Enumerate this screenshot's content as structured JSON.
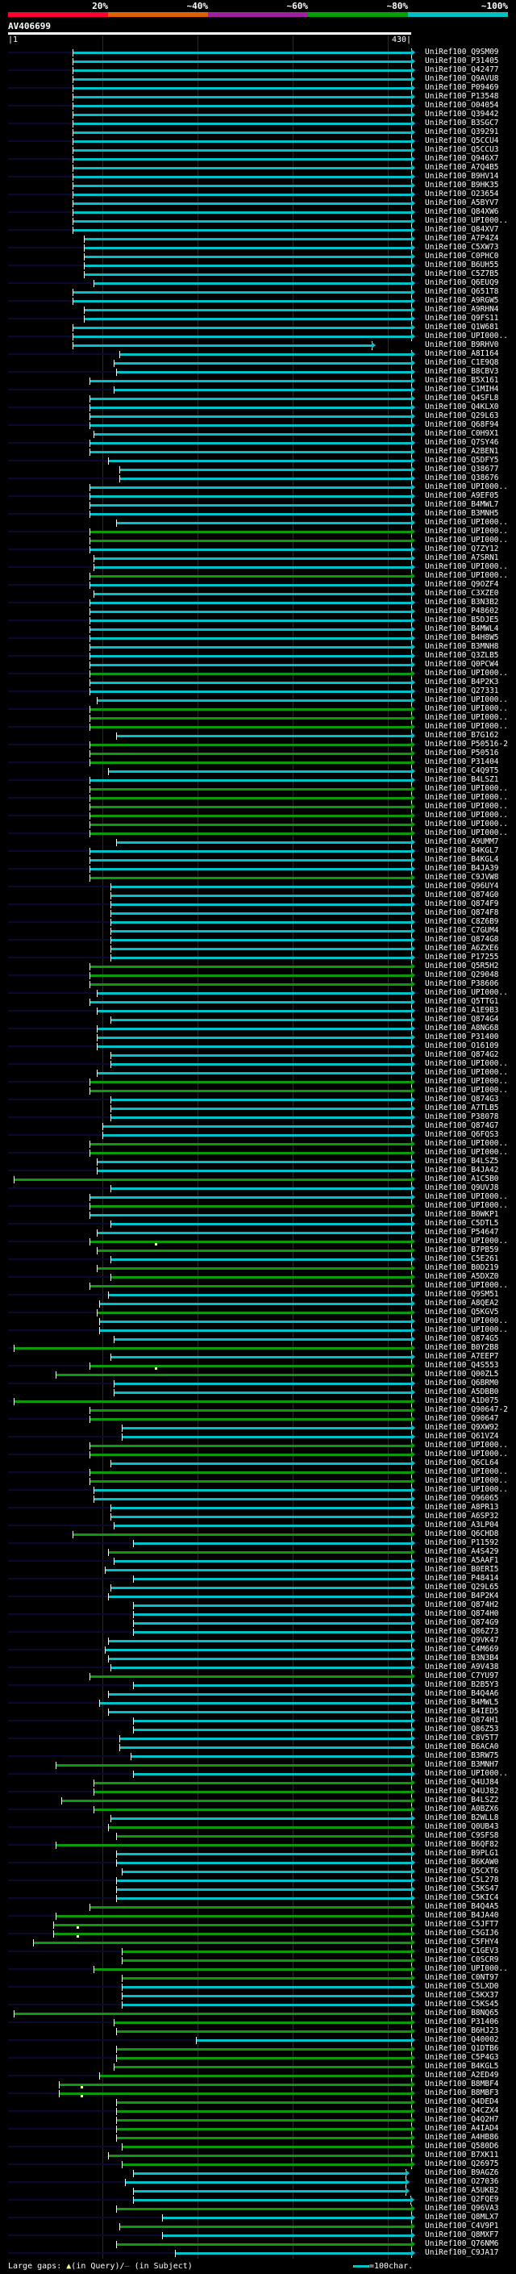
{
  "scale": {
    "labels": [
      "20%",
      "~40%",
      "~60%",
      "~80%",
      "~100%"
    ],
    "colors": [
      "#ff0030",
      "#e06000",
      "#a020a0",
      "#00a000",
      "#00c0c0"
    ]
  },
  "query": {
    "title": "AV406699",
    "start_label": "|1",
    "end_label": "430|",
    "length": 430
  },
  "colors": {
    "c": "#00c0c8",
    "g": "#0a9a0a",
    "subject": "#0a0a30"
  },
  "hits": [
    [
      "UniRef100_Q9SM09",
      70,
      430,
      "c"
    ],
    [
      "UniRef100_P31405",
      70,
      430,
      "c"
    ],
    [
      "UniRef100_Q42477",
      70,
      430,
      "c"
    ],
    [
      "UniRef100_Q9AVU8",
      70,
      430,
      "c"
    ],
    [
      "UniRef100_P09469",
      70,
      430,
      "c"
    ],
    [
      "UniRef100_P13548",
      70,
      430,
      "c"
    ],
    [
      "UniRef100_O04054",
      70,
      430,
      "c"
    ],
    [
      "UniRef100_Q39442",
      70,
      430,
      "c"
    ],
    [
      "UniRef100_B3SGC7",
      70,
      430,
      "c"
    ],
    [
      "UniRef100_Q39291",
      70,
      430,
      "c"
    ],
    [
      "UniRef100_Q5CCU4",
      70,
      430,
      "c"
    ],
    [
      "UniRef100_Q5CCU3",
      70,
      430,
      "c"
    ],
    [
      "UniRef100_Q946X7",
      70,
      430,
      "c"
    ],
    [
      "UniRef100_A7Q4B5",
      70,
      430,
      "c"
    ],
    [
      "UniRef100_B9HV14",
      70,
      430,
      "c"
    ],
    [
      "UniRef100_B9HK35",
      70,
      430,
      "c"
    ],
    [
      "UniRef100_O23654",
      70,
      430,
      "c"
    ],
    [
      "UniRef100_A5BYV7",
      70,
      430,
      "c"
    ],
    [
      "UniRef100_Q84XW6",
      70,
      430,
      "c"
    ],
    [
      "UniRef100_UPI000..",
      70,
      430,
      "c"
    ],
    [
      "UniRef100_Q84XV7",
      70,
      430,
      "c"
    ],
    [
      "UniRef100_A7P4Z4",
      82,
      430,
      "c"
    ],
    [
      "UniRef100_C5XW73",
      82,
      430,
      "c"
    ],
    [
      "UniRef100_C0PHC0",
      82,
      430,
      "c"
    ],
    [
      "UniRef100_B6UH55",
      82,
      430,
      "c"
    ],
    [
      "UniRef100_C5Z7B5",
      82,
      430,
      "c"
    ],
    [
      "UniRef100_Q6EUQ9",
      92,
      430,
      "c"
    ],
    [
      "UniRef100_Q651T8",
      70,
      430,
      "c"
    ],
    [
      "UniRef100_A9RGW5",
      70,
      430,
      "c"
    ],
    [
      "UniRef100_A9RHN4",
      82,
      430,
      "c"
    ],
    [
      "UniRef100_Q9FS11",
      82,
      430,
      "c"
    ],
    [
      "UniRef100_Q1W681",
      70,
      430,
      "c"
    ],
    [
      "UniRef100_UPI000..",
      70,
      430,
      "c"
    ],
    [
      "UniRef100_B9RHV0",
      70,
      388,
      "c"
    ],
    [
      "UniRef100_A8I164",
      119,
      430,
      "c"
    ],
    [
      "UniRef100_C1E9Q8",
      113,
      430,
      "c"
    ],
    [
      "UniRef100_B8CBV3",
      116,
      430,
      "c"
    ],
    [
      "UniRef100_B5X161",
      88,
      430,
      "c"
    ],
    [
      "UniRef100_C1MIH4",
      113,
      430,
      "c"
    ],
    [
      "UniRef100_Q4SFL8",
      88,
      430,
      "c"
    ],
    [
      "UniRef100_Q4KLX0",
      88,
      430,
      "c"
    ],
    [
      "UniRef100_Q29L63",
      88,
      430,
      "c"
    ],
    [
      "UniRef100_Q68F94",
      88,
      430,
      "c"
    ],
    [
      "UniRef100_C0H9X1",
      92,
      430,
      "c"
    ],
    [
      "UniRef100_Q7SY46",
      88,
      430,
      "c"
    ],
    [
      "UniRef100_A2BEN1",
      88,
      430,
      "c"
    ],
    [
      "UniRef100_Q5DFY5",
      107,
      430,
      "c"
    ],
    [
      "UniRef100_Q38677",
      119,
      430,
      "c"
    ],
    [
      "UniRef100_Q38676",
      119,
      430,
      "c"
    ],
    [
      "UniRef100_UPI000..",
      88,
      430,
      "c"
    ],
    [
      "UniRef100_A9EF05",
      88,
      430,
      "c"
    ],
    [
      "UniRef100_B4MWL7",
      88,
      430,
      "c"
    ],
    [
      "UniRef100_B3MNH5",
      88,
      430,
      "c"
    ],
    [
      "UniRef100_UPI000..",
      116,
      430,
      "c"
    ],
    [
      "UniRef100_UPI000..",
      88,
      430,
      "g"
    ],
    [
      "UniRef100_UPI000..",
      88,
      430,
      "g"
    ],
    [
      "UniRef100_Q7ZY12",
      88,
      430,
      "c"
    ],
    [
      "UniRef100_A7SRN1",
      92,
      430,
      "c"
    ],
    [
      "UniRef100_UPI000..",
      92,
      430,
      "c"
    ],
    [
      "UniRef100_UPI000..",
      88,
      430,
      "g"
    ],
    [
      "UniRef100_Q9OZF4",
      88,
      430,
      "c"
    ],
    [
      "UniRef100_C3XZE0",
      92,
      430,
      "c"
    ],
    [
      "UniRef100_B3N3B2",
      88,
      430,
      "c"
    ],
    [
      "UniRef100_P48602",
      88,
      430,
      "c"
    ],
    [
      "UniRef100_B5DJE5",
      88,
      430,
      "c"
    ],
    [
      "UniRef100_B4MWL4",
      88,
      430,
      "c"
    ],
    [
      "UniRef100_B4H8W5",
      88,
      430,
      "c"
    ],
    [
      "UniRef100_B3MNH8",
      88,
      430,
      "c"
    ],
    [
      "UniRef100_Q3ZLB5",
      88,
      430,
      "c"
    ],
    [
      "UniRef100_Q0PCW4",
      88,
      430,
      "c"
    ],
    [
      "UniRef100_UPI000..",
      88,
      430,
      "g"
    ],
    [
      "UniRef100_B4P2K3",
      88,
      430,
      "c"
    ],
    [
      "UniRef100_Q27331",
      88,
      430,
      "c"
    ],
    [
      "UniRef100_UPI000..",
      95,
      430,
      "c"
    ],
    [
      "UniRef100_UPI000..",
      88,
      430,
      "g"
    ],
    [
      "UniRef100_UPI000..",
      88,
      430,
      "g"
    ],
    [
      "UniRef100_UPI000..",
      88,
      430,
      "g"
    ],
    [
      "UniRef100_B7G162",
      116,
      430,
      "c"
    ],
    [
      "UniRef100_P50516-2",
      88,
      430,
      "g"
    ],
    [
      "UniRef100_P50516",
      88,
      430,
      "g"
    ],
    [
      "UniRef100_P31404",
      88,
      430,
      "g"
    ],
    [
      "UniRef100_C4Q9T5",
      107,
      430,
      "c"
    ],
    [
      "UniRef100_B4LSZ1",
      88,
      430,
      "c"
    ],
    [
      "UniRef100_UPI000..",
      88,
      430,
      "g"
    ],
    [
      "UniRef100_UPI000..",
      88,
      430,
      "g"
    ],
    [
      "UniRef100_UPI000..",
      88,
      430,
      "g"
    ],
    [
      "UniRef100_UPI000..",
      88,
      430,
      "g"
    ],
    [
      "UniRef100_UPI000..",
      88,
      430,
      "g"
    ],
    [
      "UniRef100_UPI000..",
      88,
      430,
      "g"
    ],
    [
      "UniRef100_A9UMM7",
      116,
      430,
      "c"
    ],
    [
      "UniRef100_B4KGL7",
      88,
      430,
      "c"
    ],
    [
      "UniRef100_B4KGL4",
      88,
      430,
      "c"
    ],
    [
      "UniRef100_B4JA39",
      88,
      430,
      "c"
    ],
    [
      "UniRef100_C9JVW8",
      88,
      430,
      "g"
    ],
    [
      "UniRef100_Q96UY4",
      110,
      430,
      "c"
    ],
    [
      "UniRef100_Q874G0",
      110,
      430,
      "c"
    ],
    [
      "UniRef100_Q874F9",
      110,
      430,
      "c"
    ],
    [
      "UniRef100_Q874F8",
      110,
      430,
      "c"
    ],
    [
      "UniRef100_C8Z6B9",
      110,
      430,
      "c"
    ],
    [
      "UniRef100_C7GUM4",
      110,
      430,
      "c"
    ],
    [
      "UniRef100_Q874G8",
      110,
      430,
      "c"
    ],
    [
      "UniRef100_A6ZXE6",
      110,
      430,
      "c"
    ],
    [
      "UniRef100_P17255",
      110,
      430,
      "c"
    ],
    [
      "UniRef100_Q5R5H2",
      88,
      430,
      "g"
    ],
    [
      "UniRef100_Q29048",
      88,
      430,
      "g"
    ],
    [
      "UniRef100_P38606",
      88,
      430,
      "g"
    ],
    [
      "UniRef100_UPI000..",
      95,
      430,
      "c"
    ],
    [
      "UniRef100_Q5TTG1",
      88,
      430,
      "c"
    ],
    [
      "UniRef100_A1E9B3",
      95,
      430,
      "c"
    ],
    [
      "UniRef100_Q874G4",
      110,
      430,
      "c"
    ],
    [
      "UniRef100_A8NG68",
      95,
      430,
      "c"
    ],
    [
      "UniRef100_P31400",
      95,
      430,
      "c"
    ],
    [
      "UniRef100_O16109",
      95,
      430,
      "c"
    ],
    [
      "UniRef100_Q874G2",
      110,
      430,
      "c"
    ],
    [
      "UniRef100_UPI000..",
      110,
      430,
      "c"
    ],
    [
      "UniRef100_UPI000..",
      95,
      430,
      "c"
    ],
    [
      "UniRef100_UPI000..",
      88,
      430,
      "g"
    ],
    [
      "UniRef100_UPI000..",
      88,
      430,
      "g"
    ],
    [
      "UniRef100_Q874G3",
      110,
      430,
      "c"
    ],
    [
      "UniRef100_A7TLB5",
      110,
      430,
      "c"
    ],
    [
      "UniRef100_P38078",
      110,
      430,
      "c"
    ],
    [
      "UniRef100_Q874G7",
      101,
      430,
      "c"
    ],
    [
      "UniRef100_Q6FQS3",
      101,
      430,
      "c"
    ],
    [
      "UniRef100_UPI000..",
      88,
      430,
      "g"
    ],
    [
      "UniRef100_UPI000..",
      88,
      430,
      "g"
    ],
    [
      "UniRef100_B4LSZ5",
      95,
      430,
      "c"
    ],
    [
      "UniRef100_B4JA42",
      95,
      430,
      "c"
    ],
    [
      "UniRef100_A1C5B0",
      7,
      430,
      "g"
    ],
    [
      "UniRef100_Q9UVJ8",
      110,
      430,
      "c"
    ],
    [
      "UniRef100_UPI000..",
      88,
      430,
      "c"
    ],
    [
      "UniRef100_UPI000..",
      88,
      430,
      "g"
    ],
    [
      "UniRef100_B0WKP1",
      88,
      430,
      "c"
    ],
    [
      "UniRef100_C5DTL5",
      110,
      430,
      "c"
    ],
    [
      "UniRef100_P54647",
      95,
      430,
      "c"
    ],
    [
      "UniRef100_UPI000..",
      88,
      430,
      "g",
      158
    ],
    [
      "UniRef100_B7PB59",
      95,
      430,
      "g"
    ],
    [
      "UniRef100_C5E261",
      110,
      430,
      "c"
    ],
    [
      "UniRef100_B0D219",
      95,
      430,
      "g"
    ],
    [
      "UniRef100_A5DXZ0",
      110,
      430,
      "g"
    ],
    [
      "UniRef100_UPI000..",
      88,
      430,
      "g"
    ],
    [
      "UniRef100_Q9SM51",
      107,
      430,
      "c"
    ],
    [
      "UniRef100_A8QEA2",
      98,
      430,
      "c"
    ],
    [
      "UniRef100_Q5KGV5",
      95,
      430,
      "g"
    ],
    [
      "UniRef100_UPI000..",
      98,
      430,
      "c"
    ],
    [
      "UniRef100_UPI000..",
      98,
      430,
      "c"
    ],
    [
      "UniRef100_Q874G5",
      113,
      430,
      "c"
    ],
    [
      "UniRef100_B0Y2B8",
      7,
      430,
      "g"
    ],
    [
      "UniRef100_A7EEP7",
      110,
      430,
      "c"
    ],
    [
      "UniRef100_Q4S553",
      88,
      430,
      "g",
      158
    ],
    [
      "UniRef100_Q00ZL5",
      52,
      430,
      "g"
    ],
    [
      "UniRef100_Q6BRM0",
      113,
      430,
      "c"
    ],
    [
      "UniRef100_A5DBB0",
      113,
      430,
      "c"
    ],
    [
      "UniRef100_A1D075",
      7,
      430,
      "g"
    ],
    [
      "UniRef100_Q90647-2",
      88,
      430,
      "g"
    ],
    [
      "UniRef100_Q90647",
      88,
      430,
      "g"
    ],
    [
      "UniRef100_Q9XW92",
      122,
      430,
      "c"
    ],
    [
      "UniRef100_Q61VZ4",
      122,
      430,
      "c"
    ],
    [
      "UniRef100_UPI000..",
      88,
      430,
      "g"
    ],
    [
      "UniRef100_UPI000..",
      88,
      430,
      "g"
    ],
    [
      "UniRef100_Q6CL64",
      110,
      430,
      "c"
    ],
    [
      "UniRef100_UPI000..",
      88,
      430,
      "g"
    ],
    [
      "UniRef100_UPI000..",
      88,
      430,
      "g"
    ],
    [
      "UniRef100_UPI000..",
      92,
      430,
      "c"
    ],
    [
      "UniRef100_O96065",
      92,
      430,
      "c"
    ],
    [
      "UniRef100_A8PR13",
      110,
      430,
      "c"
    ],
    [
      "UniRef100_A6SP32",
      110,
      430,
      "c"
    ],
    [
      "UniRef100_A3LP04",
      113,
      430,
      "c"
    ],
    [
      "UniRef100_Q6CHD8",
      70,
      430,
      "g"
    ],
    [
      "UniRef100_P11592",
      134,
      430,
      "c"
    ],
    [
      "UniRef100_A4S429",
      107,
      430,
      "g"
    ],
    [
      "UniRef100_A5AAF1",
      113,
      430,
      "c"
    ],
    [
      "UniRef100_B0ERI5",
      104,
      430,
      "c"
    ],
    [
      "UniRef100_P48414",
      134,
      430,
      "c"
    ],
    [
      "UniRef100_Q29L65",
      110,
      430,
      "c"
    ],
    [
      "UniRef100_B4P2K4",
      107,
      430,
      "c"
    ],
    [
      "UniRef100_Q874H2",
      134,
      430,
      "c"
    ],
    [
      "UniRef100_Q874H0",
      134,
      430,
      "c"
    ],
    [
      "UniRef100_Q874G9",
      134,
      430,
      "c"
    ],
    [
      "UniRef100_Q86Z73",
      134,
      430,
      "c"
    ],
    [
      "UniRef100_Q9VK47",
      107,
      430,
      "c"
    ],
    [
      "UniRef100_C4M669",
      104,
      430,
      "c"
    ],
    [
      "UniRef100_B3N3B4",
      107,
      430,
      "c"
    ],
    [
      "UniRef100_A9V438",
      110,
      430,
      "c"
    ],
    [
      "UniRef100_C7YU97",
      88,
      430,
      "g"
    ],
    [
      "UniRef100_B2B5Y3",
      134,
      430,
      "c"
    ],
    [
      "UniRef100_B4Q4A6",
      107,
      430,
      "c"
    ],
    [
      "UniRef100_B4MWL5",
      98,
      430,
      "c"
    ],
    [
      "UniRef100_B4IED5",
      107,
      430,
      "c"
    ],
    [
      "UniRef100_Q874H1",
      134,
      430,
      "c"
    ],
    [
      "UniRef100_Q86Z53",
      134,
      430,
      "c"
    ],
    [
      "UniRef100_C8V5T7",
      119,
      430,
      "c"
    ],
    [
      "UniRef100_B6ACA0",
      119,
      430,
      "c"
    ],
    [
      "UniRef100_B3RW75",
      131,
      430,
      "c"
    ],
    [
      "UniRef100_B3MNH7",
      52,
      430,
      "g"
    ],
    [
      "UniRef100_UPI000..",
      134,
      430,
      "c"
    ],
    [
      "UniRef100_Q4UJ84",
      92,
      430,
      "g"
    ],
    [
      "UniRef100_Q4UJ82",
      92,
      430,
      "g"
    ],
    [
      "UniRef100_B4LSZ2",
      58,
      430,
      "g"
    ],
    [
      "UniRef100_A0BZX6",
      92,
      430,
      "g"
    ],
    [
      "UniRef100_B2WLL8",
      110,
      430,
      "c"
    ],
    [
      "UniRef100_Q0UB43",
      107,
      430,
      "g"
    ],
    [
      "UniRef100_C9SFS8",
      116,
      430,
      "g"
    ],
    [
      "UniRef100_B6QF82",
      52,
      430,
      "g"
    ],
    [
      "UniRef100_B9PLG1",
      116,
      430,
      "c"
    ],
    [
      "UniRef100_B6KAW0",
      116,
      430,
      "c"
    ],
    [
      "UniRef100_Q5CXT6",
      122,
      430,
      "c"
    ],
    [
      "UniRef100_C5L278",
      116,
      430,
      "c"
    ],
    [
      "UniRef100_C5KS47",
      116,
      430,
      "c"
    ],
    [
      "UniRef100_C5KIC4",
      116,
      430,
      "c"
    ],
    [
      "UniRef100_B4Q4A5",
      88,
      430,
      "g"
    ],
    [
      "UniRef100_B4JA40",
      52,
      430,
      "g"
    ],
    [
      "UniRef100_C5JFT7",
      49,
      430,
      "g",
      75
    ],
    [
      "UniRef100_C5GIJ6",
      49,
      430,
      "g",
      75
    ],
    [
      "UniRef100_C5FHY4",
      28,
      430,
      "g"
    ],
    [
      "UniRef100_C1GEV3",
      122,
      430,
      "g"
    ],
    [
      "UniRef100_C0SCR9",
      122,
      430,
      "g"
    ],
    [
      "UniRef100_UPI000..",
      92,
      430,
      "g"
    ],
    [
      "UniRef100_C0NT97",
      122,
      430,
      "g"
    ],
    [
      "UniRef100_C5LXD0",
      122,
      430,
      "c"
    ],
    [
      "UniRef100_C5KX37",
      122,
      430,
      "c"
    ],
    [
      "UniRef100_C5KS45",
      122,
      430,
      "c"
    ],
    [
      "UniRef100_B8NQ65",
      7,
      430,
      "g"
    ],
    [
      "UniRef100_P31406",
      113,
      430,
      "g"
    ],
    [
      "UniRef100_B6HJ23",
      116,
      430,
      "g"
    ],
    [
      "UniRef100_Q40002",
      201,
      430,
      "c"
    ],
    [
      "UniRef100_Q1DTB6",
      116,
      430,
      "g"
    ],
    [
      "UniRef100_C5P4G3",
      116,
      430,
      "g"
    ],
    [
      "UniRef100_B4KGL5",
      113,
      430,
      "g"
    ],
    [
      "UniRef100_A2ED49",
      98,
      430,
      "g"
    ],
    [
      "UniRef100_B8MBF4",
      55,
      430,
      "g",
      79
    ],
    [
      "UniRef100_B8MBF3",
      55,
      430,
      "g",
      79
    ],
    [
      "UniRef100_Q4DED4",
      116,
      430,
      "g"
    ],
    [
      "UniRef100_Q4CZX4",
      116,
      430,
      "g"
    ],
    [
      "UniRef100_Q4Q2H7",
      116,
      430,
      "g"
    ],
    [
      "UniRef100_A4IAD4",
      116,
      430,
      "g"
    ],
    [
      "UniRef100_A4HB86",
      116,
      430,
      "g"
    ],
    [
      "UniRef100_Q580D6",
      122,
      430,
      "g"
    ],
    [
      "UniRef100_B7XK11",
      107,
      430,
      "g"
    ],
    [
      "UniRef100_Q26975",
      122,
      430,
      "g"
    ],
    [
      "UniRef100_B9AGZ6",
      134,
      424,
      "c"
    ],
    [
      "UniRef100_O27036",
      125,
      424,
      "c"
    ],
    [
      "UniRef100_A5UKB2",
      134,
      424,
      "c"
    ],
    [
      "UniRef100_Q2FQE9",
      134,
      429,
      "c"
    ],
    [
      "UniRef100_Q96VA3",
      116,
      430,
      "g"
    ],
    [
      "UniRef100_Q8MLX7",
      165,
      430,
      "c"
    ],
    [
      "UniRef100_C4V9P1",
      119,
      430,
      "g"
    ],
    [
      "UniRef100_Q8MXF7",
      165,
      430,
      "c"
    ],
    [
      "UniRef100_Q76NM6",
      116,
      430,
      "g"
    ],
    [
      "UniRef100_C9JA17",
      179,
      430,
      "c"
    ]
  ],
  "footer": {
    "gaps_label": "Large gaps:",
    "query_gap_text": "(in Query)/",
    "subject_gap_text": " (in Subject)",
    "legend_text": "=100char."
  }
}
